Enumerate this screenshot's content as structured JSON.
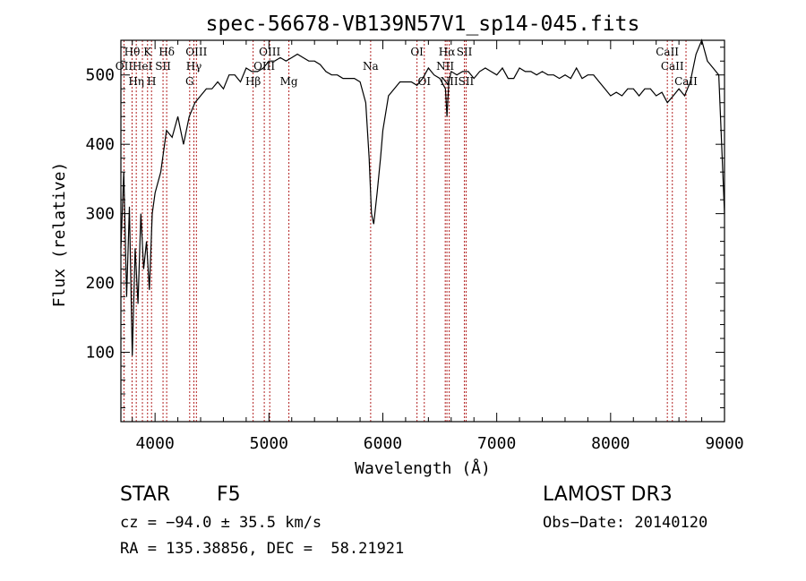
{
  "chart_data": {
    "type": "line",
    "title": "spec-56678-VB139N57V1_sp14-045.fits",
    "xlabel": "Wavelength (Å)",
    "ylabel": "Flux (relative)",
    "xlim": [
      3700,
      9000
    ],
    "ylim": [
      0,
      550
    ],
    "xticks": [
      4000,
      5000,
      6000,
      7000,
      8000,
      9000
    ],
    "yticks": [
      100,
      200,
      300,
      400,
      500
    ],
    "line_color": "#000000",
    "marker_color": "#b22222",
    "series": [
      {
        "x": [
          3700,
          3725,
          3750,
          3775,
          3800,
          3825,
          3850,
          3875,
          3900,
          3925,
          3950,
          3975,
          4000,
          4050,
          4100,
          4150,
          4200,
          4250,
          4300,
          4350,
          4400,
          4450,
          4500,
          4550,
          4600,
          4650,
          4700,
          4750,
          4800,
          4850,
          4900,
          4950,
          5000,
          5050,
          5100,
          5150,
          5200,
          5250,
          5300,
          5350,
          5400,
          5450,
          5500,
          5550,
          5600,
          5650,
          5700,
          5750,
          5800,
          5850,
          5880,
          5900,
          5920,
          5950,
          5980,
          6000,
          6050,
          6100,
          6150,
          6200,
          6250,
          6300,
          6350,
          6400,
          6450,
          6500,
          6550,
          6563,
          6580,
          6600,
          6650,
          6700,
          6750,
          6800,
          6850,
          6900,
          6950,
          7000,
          7050,
          7100,
          7150,
          7200,
          7250,
          7300,
          7350,
          7400,
          7450,
          7500,
          7550,
          7600,
          7650,
          7700,
          7750,
          7800,
          7850,
          7900,
          7950,
          8000,
          8050,
          8100,
          8150,
          8200,
          8250,
          8300,
          8350,
          8400,
          8450,
          8498,
          8550,
          8600,
          8650,
          8700,
          8750,
          8800,
          8850,
          8900,
          8950,
          9000
        ],
        "y": [
          250,
          360,
          180,
          310,
          95,
          250,
          170,
          300,
          220,
          260,
          190,
          300,
          330,
          360,
          420,
          410,
          440,
          400,
          440,
          460,
          470,
          480,
          480,
          490,
          480,
          500,
          500,
          490,
          510,
          505,
          505,
          510,
          520,
          520,
          525,
          520,
          525,
          530,
          525,
          520,
          520,
          515,
          505,
          500,
          500,
          495,
          495,
          495,
          490,
          460,
          380,
          300,
          285,
          330,
          380,
          420,
          470,
          480,
          490,
          490,
          490,
          485,
          495,
          510,
          500,
          495,
          480,
          440,
          490,
          505,
          500,
          505,
          505,
          495,
          505,
          510,
          505,
          500,
          510,
          495,
          495,
          510,
          505,
          505,
          500,
          505,
          500,
          500,
          495,
          500,
          495,
          510,
          495,
          500,
          500,
          490,
          480,
          470,
          475,
          470,
          480,
          480,
          470,
          480,
          480,
          470,
          475,
          460,
          470,
          480,
          470,
          490,
          530,
          550,
          520,
          510,
          500,
          300
        ]
      }
    ],
    "lines": [
      {
        "label": "Hθ",
        "x": 3798,
        "row": 1
      },
      {
        "label": "K",
        "x": 3934,
        "row": 1
      },
      {
        "label": "Hδ",
        "x": 4102,
        "row": 1
      },
      {
        "label": "OII",
        "x": 3727,
        "row": 2
      },
      {
        "label": "HeI",
        "x": 3889,
        "row": 2
      },
      {
        "label": "SII",
        "x": 4070,
        "row": 2
      },
      {
        "label": "Hη",
        "x": 3835,
        "row": 3
      },
      {
        "label": "H",
        "x": 3969,
        "row": 3
      },
      {
        "label": "OIII",
        "x": 4363,
        "row": 1
      },
      {
        "label": "Hγ",
        "x": 4341,
        "row": 2
      },
      {
        "label": "G",
        "x": 4304,
        "row": 3
      },
      {
        "label": "OIII",
        "x": 5007,
        "row": 1
      },
      {
        "label": "OIII",
        "x": 4959,
        "row": 2
      },
      {
        "label": "Hβ",
        "x": 4861,
        "row": 3
      },
      {
        "label": "Mg",
        "x": 5175,
        "row": 3
      },
      {
        "label": "Na",
        "x": 5893,
        "row": 2
      },
      {
        "label": "OI",
        "x": 6300,
        "row": 1
      },
      {
        "label": "OI",
        "x": 6364,
        "row": 3
      },
      {
        "label": "Hα",
        "x": 6563,
        "row": 1
      },
      {
        "label": "SII",
        "x": 6716,
        "row": 1
      },
      {
        "label": "NII",
        "x": 6548,
        "row": 2
      },
      {
        "label": "NII",
        "x": 6583,
        "row": 3
      },
      {
        "label": "SII",
        "x": 6731,
        "row": 3
      },
      {
        "label": "CaII",
        "x": 8498,
        "row": 1
      },
      {
        "label": "CaII",
        "x": 8542,
        "row": 2
      },
      {
        "label": "CaII",
        "x": 8662,
        "row": 3
      }
    ]
  },
  "info": {
    "class": "STAR",
    "subclass": "F5",
    "survey": "LAMOST DR3",
    "cz": "cz = −94.0 ± 35.5 km/s",
    "obs_date": "Obs−Date: 20140120",
    "radec": "RA = 135.38856, DEC =  58.21921"
  }
}
